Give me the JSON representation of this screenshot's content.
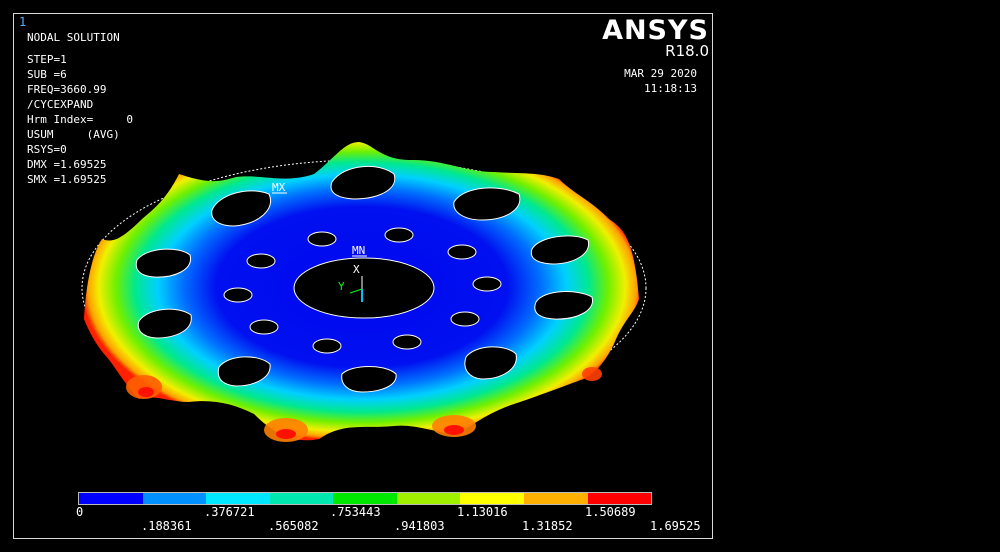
{
  "window": {
    "number": "1"
  },
  "brand": {
    "name": "ANSYS",
    "version": "R18.0"
  },
  "timestamp": {
    "date": "MAR 29 2020",
    "time": "11:18:13"
  },
  "info": {
    "title": "NODAL SOLUTION",
    "lines": [
      "STEP=1",
      "SUB =6",
      "FREQ=3660.99",
      "/CYCEXPAND",
      "Hrm Index=     0",
      "USUM     (AVG)",
      "RSYS=0",
      "DMX =1.69525",
      "SMX =1.69525"
    ]
  },
  "markers": {
    "max": "MX",
    "min": "MN",
    "axis_x": "X",
    "axis_y": "Y"
  },
  "legend": {
    "colors": [
      "#0000ff",
      "#0090ff",
      "#00e8ff",
      "#00e8b0",
      "#00e800",
      "#a0f000",
      "#ffff00",
      "#ffb000",
      "#ff0000"
    ],
    "top_labels": [
      "0",
      ".376721",
      ".753443",
      "1.13016",
      "1.50689"
    ],
    "bottom_labels": [
      ".188361",
      ".565082",
      ".941803",
      "1.31852",
      "1.69525"
    ]
  }
}
